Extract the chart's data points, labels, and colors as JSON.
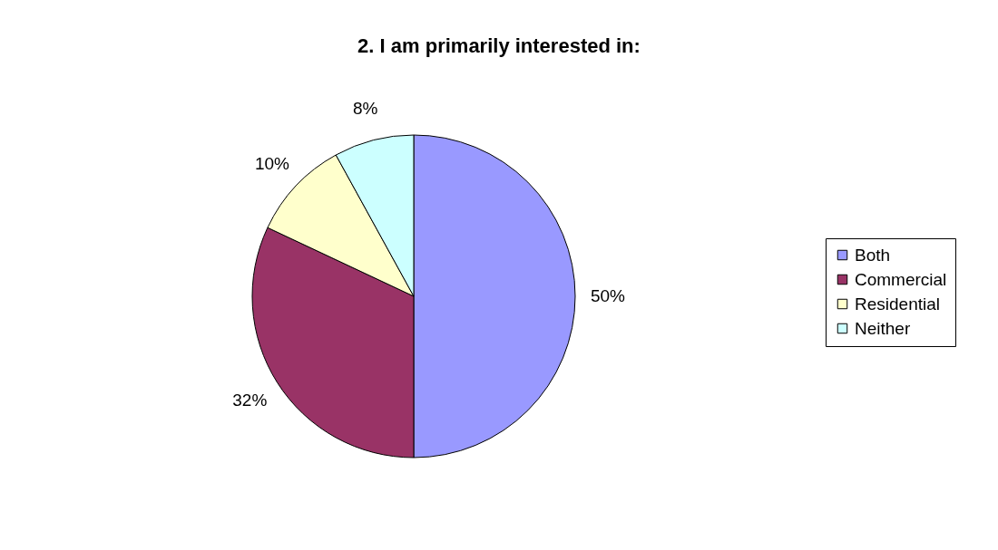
{
  "chart_data": {
    "type": "pie",
    "title": "2. I am primarily interested in:",
    "categories": [
      "Both",
      "Commercial",
      "Residential",
      "Neither"
    ],
    "values": [
      50,
      32,
      10,
      8
    ],
    "colors": [
      "#9999ff",
      "#993366",
      "#ffffcc",
      "#ccffff"
    ],
    "value_labels": [
      "50%",
      "32%",
      "10%",
      "8%"
    ],
    "legend": "right"
  }
}
